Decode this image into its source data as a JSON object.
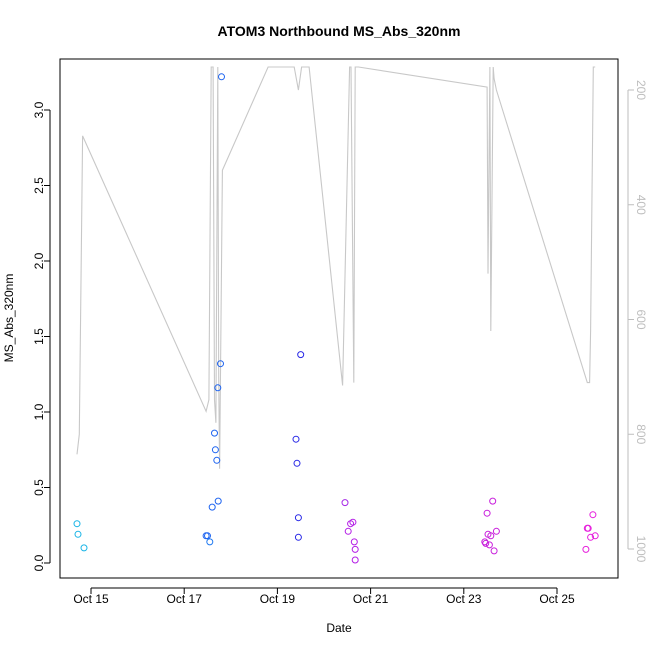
{
  "chart_data": {
    "type": "scatter",
    "title": "ATOM3 Northbound MS_Abs_320nm",
    "xlabel": "Date",
    "ylabel": "MS_Abs_320nm",
    "ylim": [
      0,
      3.3
    ],
    "xlim_days": [
      14.6,
      26.3
    ],
    "y_ticks": [
      0.0,
      0.5,
      1.0,
      1.5,
      2.0,
      2.5,
      3.0
    ],
    "y_tick_labels": [
      "0.0",
      "0.5",
      "1.0",
      "1.5",
      "2.0",
      "2.5",
      "3.0"
    ],
    "x_ticks": [
      {
        "value": 15,
        "label": "Oct 15"
      },
      {
        "value": 17,
        "label": "Oct 17"
      },
      {
        "value": 19,
        "label": "Oct 19"
      },
      {
        "value": 21,
        "label": "Oct 21"
      },
      {
        "value": 23,
        "label": "Oct 23"
      },
      {
        "value": 25,
        "label": "Oct 25"
      }
    ],
    "secondary_axis": {
      "side": "right",
      "reversed": true,
      "range": [
        1025,
        160
      ],
      "ticks": [
        200,
        400,
        600,
        800,
        1000
      ],
      "tick_labels": [
        "200",
        "400",
        "600",
        "800",
        "1000"
      ],
      "color": "#bebebe"
    },
    "grid": false,
    "legend": "none",
    "points": [
      {
        "x": 14.7,
        "y": 0.26,
        "color": "#18b4e6"
      },
      {
        "x": 14.72,
        "y": 0.19,
        "color": "#18b4e6"
      },
      {
        "x": 14.85,
        "y": 0.1,
        "color": "#18b4e6"
      },
      {
        "x": 17.47,
        "y": 0.18,
        "color": "#1e64f0"
      },
      {
        "x": 17.5,
        "y": 0.18,
        "color": "#1e64f0"
      },
      {
        "x": 17.55,
        "y": 0.14,
        "color": "#1e78f0"
      },
      {
        "x": 17.6,
        "y": 0.37,
        "color": "#1e64f0"
      },
      {
        "x": 17.65,
        "y": 0.86,
        "color": "#1e64f0"
      },
      {
        "x": 17.67,
        "y": 0.75,
        "color": "#1e64f0"
      },
      {
        "x": 17.7,
        "y": 0.68,
        "color": "#1e64f0"
      },
      {
        "x": 17.72,
        "y": 1.16,
        "color": "#1e64f0"
      },
      {
        "x": 17.73,
        "y": 0.41,
        "color": "#1e64f0"
      },
      {
        "x": 17.78,
        "y": 1.32,
        "color": "#1e64f0"
      },
      {
        "x": 17.8,
        "y": 3.22,
        "color": "#1e64f0"
      },
      {
        "x": 19.4,
        "y": 0.82,
        "color": "#2828e6"
      },
      {
        "x": 19.42,
        "y": 0.66,
        "color": "#2828e6"
      },
      {
        "x": 19.45,
        "y": 0.3,
        "color": "#2828e6"
      },
      {
        "x": 19.45,
        "y": 0.17,
        "color": "#2828e6"
      },
      {
        "x": 19.5,
        "y": 1.38,
        "color": "#2828e6"
      },
      {
        "x": 20.45,
        "y": 0.4,
        "color": "#a528e6"
      },
      {
        "x": 20.52,
        "y": 0.21,
        "color": "#b41ee6"
      },
      {
        "x": 20.57,
        "y": 0.26,
        "color": "#b41ee6"
      },
      {
        "x": 20.62,
        "y": 0.27,
        "color": "#b41ee6"
      },
      {
        "x": 20.65,
        "y": 0.14,
        "color": "#b41ee6"
      },
      {
        "x": 20.67,
        "y": 0.09,
        "color": "#b41ee6"
      },
      {
        "x": 20.67,
        "y": 0.02,
        "color": "#b41ee6"
      },
      {
        "x": 23.45,
        "y": 0.14,
        "color": "#c81edc"
      },
      {
        "x": 23.47,
        "y": 0.13,
        "color": "#c81edc"
      },
      {
        "x": 23.5,
        "y": 0.33,
        "color": "#c81edc"
      },
      {
        "x": 23.52,
        "y": 0.19,
        "color": "#c81edc"
      },
      {
        "x": 23.55,
        "y": 0.12,
        "color": "#c81edc"
      },
      {
        "x": 23.58,
        "y": 0.18,
        "color": "#c81edc"
      },
      {
        "x": 23.62,
        "y": 0.41,
        "color": "#c81edc"
      },
      {
        "x": 23.65,
        "y": 0.08,
        "color": "#c81edc"
      },
      {
        "x": 23.7,
        "y": 0.21,
        "color": "#c81edc"
      },
      {
        "x": 25.62,
        "y": 0.09,
        "color": "#e61edc"
      },
      {
        "x": 25.65,
        "y": 0.23,
        "color": "#e61edc"
      },
      {
        "x": 25.67,
        "y": 0.23,
        "color": "#e61edc"
      },
      {
        "x": 25.72,
        "y": 0.17,
        "color": "#e61edc"
      },
      {
        "x": 25.77,
        "y": 0.32,
        "color": "#e61edc"
      },
      {
        "x": 25.82,
        "y": 0.18,
        "color": "#e61edc"
      }
    ],
    "pressure_line": {
      "color": "#c8c8c8",
      "x": [
        14.7,
        14.75,
        14.82,
        17.47,
        17.53,
        17.58,
        17.62,
        17.65,
        17.68,
        17.72,
        17.74,
        17.76,
        17.82,
        18.8,
        19.3,
        19.32,
        19.36,
        19.45,
        19.52,
        19.6,
        19.68,
        20.4,
        20.55,
        20.58,
        20.64,
        20.67,
        20.74,
        23.5,
        23.52,
        23.56,
        23.58,
        23.63,
        23.65,
        23.7,
        25.65,
        25.7,
        25.72,
        25.78,
        25.82
      ],
      "y": [
        835,
        800,
        280,
        760,
        740,
        160,
        160,
        740,
        780,
        160,
        700,
        860,
        340,
        160,
        160,
        160,
        160,
        200,
        160,
        160,
        160,
        715,
        160,
        160,
        710,
        160,
        160,
        195,
        520,
        160,
        620,
        160,
        180,
        200,
        710,
        710,
        620,
        160,
        160
      ]
    }
  }
}
